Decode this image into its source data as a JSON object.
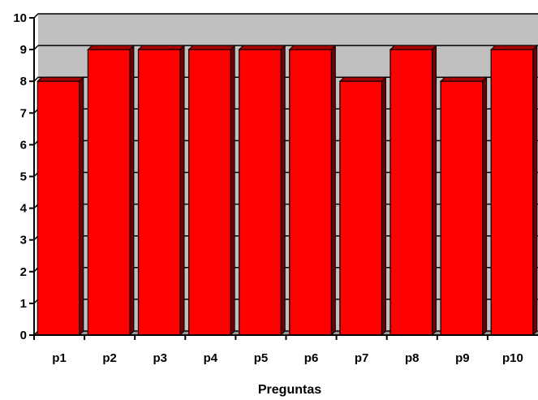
{
  "chart_data": {
    "type": "bar",
    "categories": [
      "p1",
      "p2",
      "p3",
      "p4",
      "p5",
      "p6",
      "p7",
      "p8",
      "p9",
      "p10"
    ],
    "values": [
      8,
      9,
      9,
      9,
      9,
      9,
      8,
      9,
      8,
      9
    ],
    "title": "",
    "xlabel": "Preguntas",
    "ylabel": "",
    "ylim": [
      0,
      10
    ],
    "yticks": [
      "0",
      "1",
      "2",
      "3",
      "4",
      "5",
      "6",
      "7",
      "8",
      "9",
      "10"
    ],
    "grid": true,
    "legend": "none",
    "colors": {
      "bar_front": "#ff0000",
      "bar_top": "#aa0000",
      "bar_side": "#6e0000",
      "plot_background": "#c0c0c0",
      "floor": "#999999"
    }
  }
}
